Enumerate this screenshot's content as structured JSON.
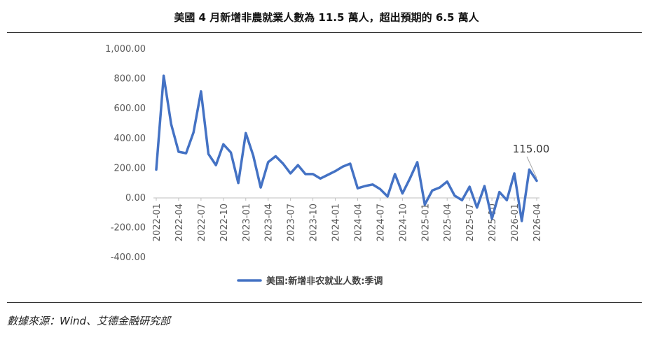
{
  "header": {
    "title": "美國 4 月新增非農就業人數為 11.5 萬人，超出預期的 6.5 萬人"
  },
  "footer": {
    "source": "數據來源：Wind、艾德金融研究部"
  },
  "colors": {
    "series": "#4472C4",
    "axis_text": "#595959",
    "callout_line": "#A6A6A6"
  },
  "chart_data": {
    "type": "line",
    "title": "美國 4 月新增非農就業人數為 11.5 萬人，超出預期的 6.5 萬人",
    "xlabel": "",
    "ylabel": "",
    "ylim": [
      -400,
      1000
    ],
    "yticks": [
      -400,
      -200,
      0,
      200,
      400,
      600,
      800,
      1000
    ],
    "ytick_labels": [
      "-400.00",
      "-200.00",
      "0.00",
      "200.00",
      "400.00",
      "600.00",
      "800.00",
      "1,000.00"
    ],
    "xtick_labels": [
      "2022-01",
      "2022-04",
      "2022-07",
      "2022-10",
      "2023-01",
      "2023-04",
      "2023-07",
      "2023-10",
      "2024-01",
      "2024-04",
      "2024-07",
      "2024-10",
      "2025-01",
      "2025-04",
      "2025-07",
      "2025-10",
      "2026-01",
      "2026-04"
    ],
    "grid": false,
    "legend": {
      "position": "bottom",
      "entries": [
        "美国:新增非农就业人数:季调"
      ]
    },
    "annotation": {
      "text": "115.00",
      "x": "2026-04",
      "y": 115
    },
    "series": [
      {
        "name": "美国:新增非农就业人数:季调",
        "x": [
          "2022-01",
          "2022-02",
          "2022-03",
          "2022-04",
          "2022-05",
          "2022-06",
          "2022-07",
          "2022-08",
          "2022-09",
          "2022-10",
          "2022-11",
          "2022-12",
          "2023-01",
          "2023-02",
          "2023-03",
          "2023-04",
          "2023-05",
          "2023-06",
          "2023-07",
          "2023-08",
          "2023-09",
          "2023-10",
          "2023-11",
          "2023-12",
          "2024-01",
          "2024-02",
          "2024-03",
          "2024-04",
          "2024-05",
          "2024-06",
          "2024-07",
          "2024-08",
          "2024-09",
          "2024-10",
          "2024-11",
          "2024-12",
          "2025-01",
          "2025-02",
          "2025-03",
          "2025-04",
          "2025-05",
          "2025-06",
          "2025-07",
          "2025-08",
          "2025-09",
          "2025-10",
          "2025-11",
          "2025-12",
          "2026-01",
          "2026-02",
          "2026-03",
          "2026-04"
        ],
        "values": [
          190,
          820,
          495,
          310,
          300,
          440,
          715,
          295,
          220,
          360,
          305,
          100,
          435,
          285,
          70,
          240,
          280,
          230,
          165,
          220,
          160,
          160,
          130,
          155,
          180,
          210,
          230,
          65,
          80,
          90,
          60,
          10,
          160,
          30,
          130,
          240,
          -45,
          50,
          70,
          110,
          15,
          -15,
          75,
          -65,
          80,
          -140,
          40,
          -15,
          165,
          -155,
          190,
          115
        ]
      }
    ]
  }
}
